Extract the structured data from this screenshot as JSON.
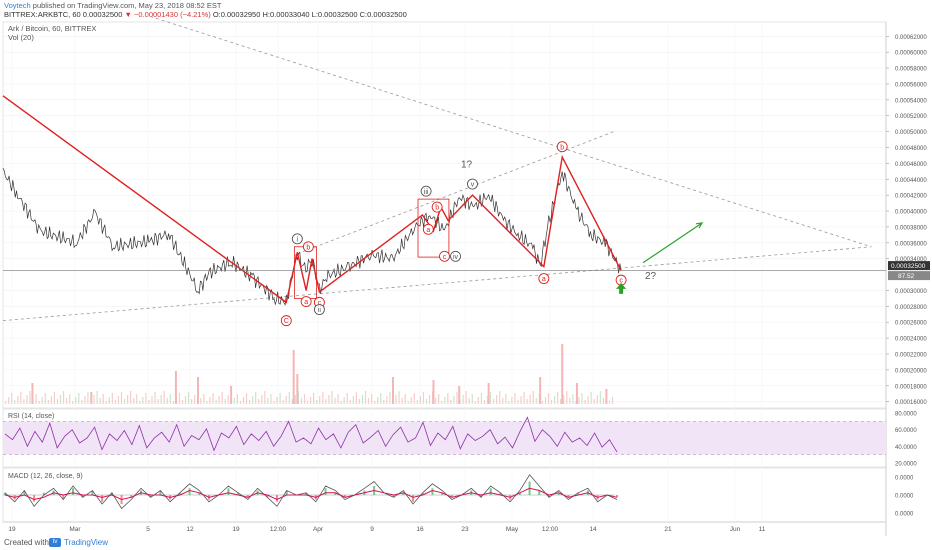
{
  "header": {
    "author": "Voytech",
    "published": " published on TradingView.com, May 23, 2018 08:52 EST",
    "symbol_line": "BITTREX:ARKBTC, 60  0.00032500",
    "change": "▼ −0.00001430 (−4.21%)",
    "ohlc": "O:0.00032950  H:0.00033040  L:0.00032500  C:0.00032500"
  },
  "footer": {
    "created": "Created with",
    "brand": "TradingView"
  },
  "colors": {
    "wave_line": "#e02020",
    "price": "#333333",
    "rsi": "#8e2fa8",
    "macd_line": "#555555",
    "macd_signal": "#d0145a",
    "green_arrow": "#2aa32a",
    "dashed_trend": "#999999"
  },
  "chart_data": {
    "type": "line",
    "title": "Ark / Bitcoin, 60, BITTREX",
    "subtitle": "Vol (20)",
    "price_axis": {
      "ticks": [
        "0.00062000",
        "0.00060000",
        "0.00058000",
        "0.00056000",
        "0.00054000",
        "0.00052000",
        "0.00050000",
        "0.00048000",
        "0.00046000",
        "0.00044000",
        "0.00042000",
        "0.00040000",
        "0.00038000",
        "0.00036000",
        "0.00034000",
        "0.00030000",
        "0.00028000",
        "0.00026000",
        "0.00024000",
        "0.00022000",
        "0.00020000",
        "0.00018000",
        "0.00016000"
      ],
      "ylim": [
        0.000152,
        0.000638
      ],
      "last_price_label": "0.00032500",
      "volume_label": "87.52"
    },
    "x_ticks": [
      "19",
      "Mar",
      "5",
      "12",
      "19",
      "12:00",
      "Apr",
      "9",
      "16",
      "23",
      "May",
      "12:00",
      "14",
      "21",
      "Jun",
      "11"
    ],
    "price_series": [
      {
        "x": 0,
        "y": 0.00045
      },
      {
        "x": 2,
        "y": 0.00042
      },
      {
        "x": 5,
        "y": 0.000375
      },
      {
        "x": 10,
        "y": 0.00036
      },
      {
        "x": 12.5,
        "y": 0.000398
      },
      {
        "x": 15,
        "y": 0.000355
      },
      {
        "x": 20,
        "y": 0.000362
      },
      {
        "x": 22.5,
        "y": 0.000372
      },
      {
        "x": 24,
        "y": 0.000345
      },
      {
        "x": 26.5,
        "y": 0.0003
      },
      {
        "x": 28,
        "y": 0.000322
      },
      {
        "x": 31,
        "y": 0.000336
      },
      {
        "x": 34,
        "y": 0.000316
      },
      {
        "x": 37,
        "y": 0.00029
      },
      {
        "x": 38.5,
        "y": 0.000285
      },
      {
        "x": 40,
        "y": 0.000348
      },
      {
        "x": 41,
        "y": 0.000325
      },
      {
        "x": 42,
        "y": 0.00034
      },
      {
        "x": 43,
        "y": 0.0003
      },
      {
        "x": 44,
        "y": 0.000318
      },
      {
        "x": 47,
        "y": 0.00033
      },
      {
        "x": 50,
        "y": 0.000345
      },
      {
        "x": 53,
        "y": 0.00034
      },
      {
        "x": 56,
        "y": 0.00038
      },
      {
        "x": 58,
        "y": 0.000395
      },
      {
        "x": 60,
        "y": 0.000375
      },
      {
        "x": 62,
        "y": 0.000418
      },
      {
        "x": 64,
        "y": 0.000405
      },
      {
        "x": 66,
        "y": 0.00042
      },
      {
        "x": 68,
        "y": 0.00039
      },
      {
        "x": 70,
        "y": 0.00037
      },
      {
        "x": 72,
        "y": 0.000355
      },
      {
        "x": 73,
        "y": 0.00033
      },
      {
        "x": 74,
        "y": 0.00038
      },
      {
        "x": 76,
        "y": 0.00045
      },
      {
        "x": 78,
        "y": 0.0004
      },
      {
        "x": 80,
        "y": 0.00037
      },
      {
        "x": 82,
        "y": 0.000358
      },
      {
        "x": 84,
        "y": 0.000325
      }
    ],
    "volume_bars": [
      {
        "x": 4,
        "v": 0.35
      },
      {
        "x": 12,
        "v": 0.2
      },
      {
        "x": 23.5,
        "v": 0.55
      },
      {
        "x": 26.5,
        "v": 0.45
      },
      {
        "x": 31,
        "v": 0.3
      },
      {
        "x": 39.5,
        "v": 0.9
      },
      {
        "x": 40,
        "v": 0.5
      },
      {
        "x": 53,
        "v": 0.45
      },
      {
        "x": 58.5,
        "v": 0.4
      },
      {
        "x": 62,
        "v": 0.3
      },
      {
        "x": 66,
        "v": 0.35
      },
      {
        "x": 73,
        "v": 0.45
      },
      {
        "x": 76,
        "v": 1.0
      },
      {
        "x": 78,
        "v": 0.35
      },
      {
        "x": 82,
        "v": 0.25
      }
    ],
    "trend_lines": [
      {
        "name": "upper-wedge-line",
        "points": [
          [
            20,
            0.000645
          ],
          [
            118,
            0.000355
          ]
        ]
      },
      {
        "name": "lower-support-line",
        "points": [
          [
            0,
            0.000262
          ],
          [
            118,
            0.000355
          ]
        ]
      },
      {
        "name": "channel-line",
        "points": [
          [
            40,
            0.000346
          ],
          [
            83,
            0.0005
          ]
        ]
      }
    ],
    "wave_path": [
      [
        0,
        0.000545
      ],
      [
        38.5,
        0.000285
      ],
      [
        40,
        0.000348
      ],
      [
        41.2,
        0.0003
      ],
      [
        42,
        0.00034
      ],
      [
        43,
        0.000298
      ],
      [
        57,
        0.000395
      ],
      [
        58.5,
        0.000375
      ],
      [
        59.5,
        0.000405
      ],
      [
        60.5,
        0.000388
      ],
      [
        63.8,
        0.00042
      ],
      [
        73.5,
        0.00033
      ],
      [
        76,
        0.000468
      ],
      [
        84,
        0.000325
      ]
    ],
    "green_arrow": [
      [
        87,
        0.000335
      ],
      [
        95,
        0.000385
      ]
    ],
    "labels": [
      {
        "text": "C",
        "circled": true,
        "color": "red",
        "x": 38.5,
        "y": 0.000262
      },
      {
        "text": "i",
        "circled": true,
        "color": "gray",
        "x": 40,
        "y": 0.000365
      },
      {
        "text": "a",
        "circled": true,
        "color": "red",
        "x": 41.2,
        "y": 0.000286
      },
      {
        "text": "b",
        "circled": true,
        "color": "red",
        "x": 41.5,
        "y": 0.000355
      },
      {
        "text": "c",
        "circled": true,
        "color": "red",
        "x": 43,
        "y": 0.000285
      },
      {
        "text": "ii",
        "circled": true,
        "color": "gray",
        "x": 43,
        "y": 0.000276
      },
      {
        "text": "iii",
        "circled": true,
        "color": "gray",
        "x": 57.5,
        "y": 0.000425
      },
      {
        "text": "a",
        "circled": true,
        "color": "red",
        "x": 57.8,
        "y": 0.000377
      },
      {
        "text": "b",
        "circled": true,
        "color": "red",
        "x": 59,
        "y": 0.000405
      },
      {
        "text": "c",
        "circled": true,
        "color": "red",
        "x": 60,
        "y": 0.000343
      },
      {
        "text": "iv",
        "circled": true,
        "color": "gray",
        "x": 61.5,
        "y": 0.000343
      },
      {
        "text": "v",
        "circled": true,
        "color": "gray",
        "x": 63.8,
        "y": 0.000434
      },
      {
        "text": "1?",
        "circled": false,
        "color": "gray",
        "x": 63,
        "y": 0.000458
      },
      {
        "text": "a",
        "circled": true,
        "color": "red",
        "x": 73.5,
        "y": 0.000315
      },
      {
        "text": "b",
        "circled": true,
        "color": "red",
        "x": 76,
        "y": 0.000481
      },
      {
        "text": "c",
        "circled": true,
        "color": "red",
        "x": 84,
        "y": 0.000313
      },
      {
        "text": "2?",
        "circled": false,
        "color": "gray",
        "x": 88,
        "y": 0.000318
      }
    ],
    "rsi": {
      "title": "RSI (14, close)",
      "ticks": [
        "80.0000",
        "60.0000",
        "40.0000",
        "20.0000"
      ],
      "ylim": [
        15,
        85
      ],
      "band": [
        30,
        70
      ],
      "values": [
        55,
        48,
        62,
        40,
        58,
        45,
        68,
        38,
        52,
        60,
        44,
        50,
        63,
        36,
        55,
        47,
        59,
        42,
        65,
        38,
        50,
        57,
        45,
        66,
        40,
        53,
        48,
        61,
        35,
        56,
        50,
        64,
        42,
        55,
        47,
        58,
        40,
        52,
        70,
        45,
        50,
        43,
        62,
        48,
        55,
        38,
        57,
        66,
        44,
        51,
        59,
        40,
        54,
        63,
        45,
        50,
        69,
        41,
        56,
        48,
        64,
        37,
        55,
        47,
        52,
        60,
        43,
        51,
        38,
        58,
        75,
        46,
        60,
        52,
        40,
        57,
        45,
        50,
        41,
        56,
        39,
        48,
        33
      ]
    },
    "macd": {
      "title": "MACD (12, 26, close, 9)",
      "ticks": [
        "0.0000",
        "0.0000",
        "0.0000"
      ],
      "ylim": [
        -1.2,
        1.2
      ],
      "macd_values": [
        0.1,
        -0.3,
        0.2,
        -0.5,
        0.0,
        0.3,
        -0.2,
        0.4,
        -0.1,
        0.2,
        -0.4,
        0.1,
        -0.6,
        -0.2,
        0.3,
        -0.1,
        0.2,
        -0.3,
        0.1,
        0.5,
        0.2,
        -0.3,
        0.0,
        0.4,
        0.1,
        -0.2,
        0.3,
        -0.1,
        -0.5,
        0.2,
        0.0,
        0.1,
        -0.3,
        0.4,
        0.2,
        -0.2,
        0.0,
        0.3,
        0.6,
        0.1,
        -0.1,
        0.2,
        -0.4,
        0.1,
        0.5,
        0.2,
        -0.2,
        0.0,
        0.3,
        -0.1,
        0.4,
        0.1,
        -0.3,
        0.2,
        0.9,
        0.4,
        -0.1,
        0.2,
        -0.2,
        0.1,
        0.3,
        -0.3,
        0.0,
        -0.2
      ],
      "signal_values": [
        0.0,
        -0.1,
        0.0,
        -0.2,
        -0.1,
        0.1,
        0.0,
        0.1,
        0.0,
        0.0,
        -0.1,
        0.0,
        -0.2,
        -0.1,
        0.1,
        0.0,
        0.0,
        -0.1,
        0.0,
        0.2,
        0.1,
        -0.1,
        0.0,
        0.1,
        0.0,
        -0.1,
        0.1,
        0.0,
        -0.2,
        0.0,
        0.0,
        0.0,
        -0.1,
        0.1,
        0.1,
        -0.1,
        0.0,
        0.1,
        0.2,
        0.1,
        0.0,
        0.1,
        -0.1,
        0.0,
        0.2,
        0.1,
        -0.1,
        0.0,
        0.1,
        0.0,
        0.1,
        0.0,
        -0.1,
        0.1,
        0.3,
        0.2,
        0.0,
        0.1,
        -0.1,
        0.0,
        0.1,
        -0.1,
        0.0,
        -0.1
      ]
    }
  }
}
